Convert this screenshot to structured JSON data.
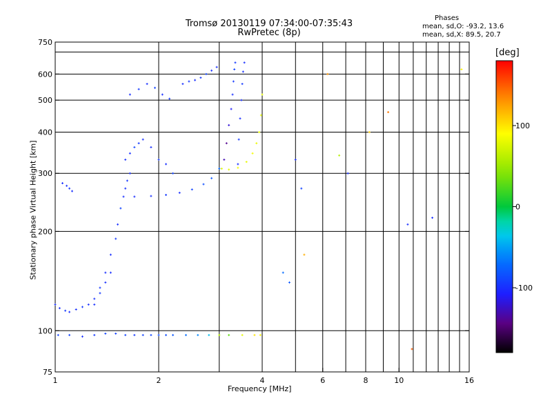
{
  "title_line1": "Tromsø 20130119 07:34:00-07:35:43",
  "title_line2": "RwPretec (8p)",
  "phases": {
    "title": "Phases",
    "line_o": "mean, sd,O: -93.2, 13.6",
    "line_x": "mean, sd,X:  89.5, 20.7"
  },
  "colorbar": {
    "label": "[deg]",
    "ticks": [
      "100",
      "0",
      "-100"
    ],
    "tick_values": [
      100,
      0,
      -100
    ],
    "range": [
      -180,
      180
    ]
  },
  "chart_data": {
    "type": "scatter",
    "xlabel": "Frequency [MHz]",
    "ylabel": "Stationary phase Virtual Height [km]",
    "xscale": "log",
    "yscale": "log",
    "xlim": [
      1,
      16
    ],
    "ylim": [
      75,
      750
    ],
    "x_ticks": [
      "1",
      "2",
      "4",
      "6",
      "8",
      "10",
      "16"
    ],
    "x_tick_values": [
      1,
      2,
      4,
      6,
      8,
      10,
      16
    ],
    "y_ticks": [
      "750",
      "600",
      "500",
      "400",
      "300",
      "200",
      "100",
      "75"
    ],
    "y_tick_values": [
      750,
      600,
      500,
      400,
      300,
      200,
      100,
      75
    ],
    "grid": true,
    "color_variable": "phase [deg]",
    "traces": [
      {
        "x": [
          1.02,
          1.1,
          1.2,
          1.3,
          1.4,
          1.5,
          1.6,
          1.7,
          1.8,
          1.9,
          2.0,
          2.1,
          2.2,
          2.4,
          2.6,
          2.8,
          3.0,
          3.2,
          3.5,
          3.8,
          3.95
        ],
        "y": [
          97,
          97,
          96,
          97,
          98,
          98,
          97,
          97,
          97,
          97,
          97,
          97,
          97,
          97,
          97,
          97,
          97,
          97,
          97,
          97,
          97
        ],
        "phase": [
          -90,
          -90,
          -100,
          -95,
          -90,
          -92,
          -90,
          -95,
          -90,
          -88,
          -85,
          -85,
          -80,
          -70,
          -60,
          -40,
          60,
          30,
          80,
          100,
          95
        ]
      },
      {
        "x": [
          1.0,
          1.03,
          1.07,
          1.1,
          1.15,
          1.2,
          1.25,
          1.3,
          1.35,
          1.4,
          1.45
        ],
        "y": [
          120,
          117,
          115,
          114,
          116,
          118,
          120,
          125,
          130,
          140,
          150
        ],
        "phase": [
          -100,
          -100,
          -95,
          -100,
          -100,
          -95,
          -100,
          -100,
          -95,
          -100,
          -100
        ]
      },
      {
        "x": [
          1.3,
          1.35,
          1.4,
          1.45,
          1.5,
          1.52,
          1.55,
          1.58,
          1.6,
          1.62,
          1.65
        ],
        "y": [
          120,
          135,
          150,
          170,
          190,
          210,
          235,
          255,
          270,
          285,
          300
        ],
        "phase": [
          -100,
          -95,
          -100,
          -100,
          -95,
          -100,
          -90,
          -100,
          -100,
          -95,
          -100
        ]
      },
      {
        "x": [
          1.7,
          1.9,
          2.1,
          2.3,
          2.5,
          2.7,
          2.85,
          3.0
        ],
        "y": [
          255,
          256,
          258,
          262,
          268,
          278,
          290,
          310
        ],
        "phase": [
          -100,
          -100,
          -95,
          -100,
          -90,
          -85,
          -80,
          -70
        ]
      },
      {
        "x": [
          3.1,
          3.15,
          3.2,
          3.25,
          3.28,
          3.3,
          3.32,
          3.34
        ],
        "y": [
          330,
          370,
          420,
          470,
          520,
          570,
          620,
          650
        ],
        "phase": [
          -130,
          -140,
          -120,
          -110,
          -100,
          -95,
          -90,
          -95
        ]
      },
      {
        "x": [
          3.4,
          3.42,
          3.45,
          3.48,
          3.5,
          3.52,
          3.55
        ],
        "y": [
          320,
          380,
          440,
          500,
          560,
          610,
          650
        ],
        "phase": [
          -100,
          -95,
          -100,
          -100,
          -95,
          -100,
          -100
        ]
      },
      {
        "x": [
          3.05,
          3.2,
          3.4,
          3.6,
          3.75,
          3.85,
          3.92,
          3.97,
          4.0
        ],
        "y": [
          310,
          308,
          312,
          325,
          345,
          370,
          400,
          450,
          520
        ],
        "phase": [
          75,
          80,
          85,
          80,
          85,
          82,
          80,
          78,
          80
        ]
      },
      {
        "x": [
          1.65,
          1.75,
          1.85,
          1.95,
          2.05,
          2.15
        ],
        "y": [
          520,
          540,
          560,
          545,
          520,
          505
        ],
        "phase": [
          -100,
          -95,
          -100,
          -90,
          -100,
          -95
        ]
      },
      {
        "x": [
          2.35,
          2.45,
          2.55,
          2.65,
          2.75,
          2.85,
          2.95
        ],
        "y": [
          560,
          570,
          575,
          585,
          600,
          615,
          630
        ],
        "phase": [
          -100,
          -95,
          -100,
          -95,
          -90,
          -100,
          -100
        ]
      },
      {
        "x": [
          1.6,
          1.65,
          1.7,
          1.75,
          1.8,
          1.9,
          2.0,
          2.1,
          2.2
        ],
        "y": [
          330,
          345,
          360,
          370,
          380,
          360,
          330,
          320,
          300
        ],
        "phase": [
          -100,
          -100,
          -90,
          -95,
          -100,
          -100,
          -95,
          -100,
          -90
        ]
      },
      {
        "x": [
          1.05,
          1.08,
          1.1,
          1.12
        ],
        "y": [
          280,
          275,
          270,
          265
        ],
        "phase": [
          -100,
          -100,
          -95,
          -100
        ]
      },
      {
        "x": [
          5.0,
          5.2,
          6.2,
          6.7,
          7.1,
          8.2,
          9.3,
          10.6,
          12.5,
          15.2,
          4.6,
          4.8,
          5.3,
          10.9
        ],
        "y": [
          330,
          270,
          600,
          340,
          300,
          400,
          460,
          210,
          220,
          620,
          150,
          140,
          170,
          88
        ],
        "phase": [
          -100,
          -90,
          130,
          60,
          -100,
          110,
          140,
          -100,
          -100,
          95,
          -70,
          -80,
          120,
          150
        ]
      }
    ]
  }
}
